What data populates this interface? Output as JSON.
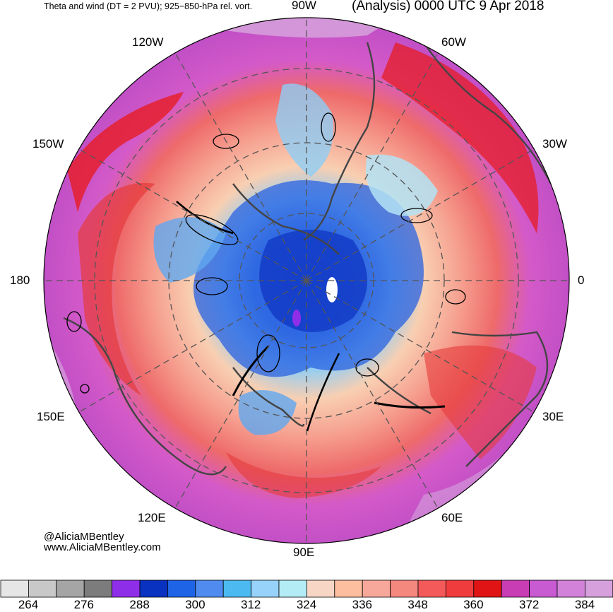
{
  "header": {
    "left_title": "Theta and wind (DT = 2 PVU); 925−850-hPa rel. vort.",
    "right_title": "(Analysis) 0000 UTC 9 Apr 2018"
  },
  "map": {
    "projection": "polar-stereographic-north",
    "longitude_labels": {
      "top": "90W",
      "top_right": "60W",
      "upper_right": "30W",
      "right": "0",
      "lower_right": "30E",
      "bottom_right": "60E",
      "bottom": "90E",
      "bottom_left": "120E",
      "lower_left": "150E",
      "left": "180",
      "upper_left": "150W",
      "top_left": "120W"
    },
    "colors": {
      "cold_core": "#1a4fd6",
      "mid_blue": "#5fa8f0",
      "light_blue": "#b3e3f5",
      "peach": "#f8c9a8",
      "salmon": "#f48a80",
      "red": "#e81818",
      "magenta": "#c94fc9",
      "lavender": "#d6a2dc"
    }
  },
  "credits": {
    "handle": "@AliciaMBentley",
    "website": "www.AliciaMBentley.com"
  },
  "colorbar": {
    "colors": [
      "#e6e6e6",
      "#c8c8c8",
      "#a5a5a5",
      "#7c7c7c",
      "#8f2ee8",
      "#0a32c0",
      "#1e64e6",
      "#508cf0",
      "#4cbaf0",
      "#96d2fa",
      "#b4ecf5",
      "#f8d6c6",
      "#fcbe9e",
      "#f8a89a",
      "#f4877e",
      "#f45a5a",
      "#f03c3c",
      "#e01414",
      "#c83cb4",
      "#c85ad2",
      "#d282d8",
      "#d6a0dc"
    ],
    "tick_labels": [
      "264",
      "276",
      "288",
      "300",
      "312",
      "324",
      "336",
      "348",
      "360",
      "372",
      "384"
    ]
  }
}
